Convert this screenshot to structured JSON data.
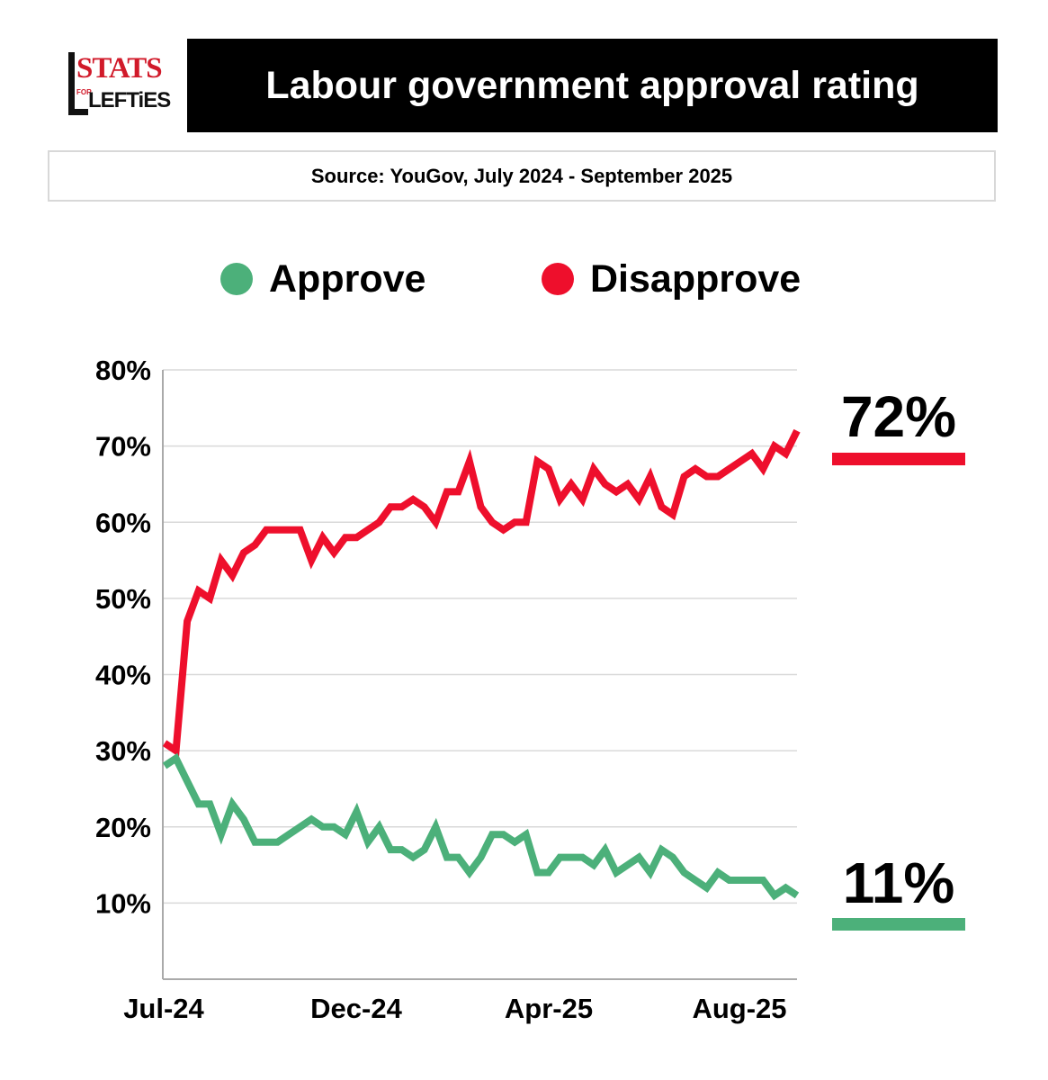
{
  "logo": {
    "line1": "STATS",
    "line2_small": "FOR",
    "line2": "LEFTiES"
  },
  "title": "Labour government approval rating",
  "source": "Source: YouGov, July 2024 - September 2025",
  "colors": {
    "approve": "#4cb07a",
    "disapprove": "#ee0f2c",
    "grid": "#d9d9d9",
    "axis": "#aaaaaa"
  },
  "legend": [
    {
      "label": "Approve",
      "color": "#4cb07a"
    },
    {
      "label": "Disapprove",
      "color": "#ee0f2c"
    }
  ],
  "chart_data": {
    "type": "line",
    "title": "Labour government approval rating",
    "x_tick_labels": [
      "Jul-24",
      "Dec-24",
      "Apr-25",
      "Aug-25"
    ],
    "x_tick_index": [
      0,
      18,
      36,
      54
    ],
    "ylim": [
      0,
      80
    ],
    "y_ticks": [
      10,
      20,
      30,
      40,
      50,
      60,
      70,
      80
    ],
    "y_tick_labels": [
      "10%",
      "20%",
      "30%",
      "40%",
      "50%",
      "60%",
      "70%",
      "80%"
    ],
    "grid": true,
    "series": [
      {
        "name": "Disapprove",
        "end_label": "72%",
        "values": [
          31,
          30,
          47,
          51,
          50,
          55,
          53,
          56,
          57,
          59,
          59,
          59,
          59,
          55,
          58,
          56,
          58,
          58,
          59,
          60,
          62,
          62,
          63,
          62,
          60,
          64,
          64,
          68,
          62,
          60,
          59,
          60,
          60,
          68,
          67,
          63,
          65,
          63,
          67,
          65,
          64,
          65,
          63,
          66,
          62,
          61,
          66,
          67,
          66,
          66,
          67,
          68,
          69,
          67,
          70,
          69,
          72
        ]
      },
      {
        "name": "Approve",
        "end_label": "11%",
        "values": [
          28,
          29,
          26,
          23,
          23,
          19,
          23,
          21,
          18,
          18,
          18,
          19,
          20,
          21,
          20,
          20,
          19,
          22,
          18,
          20,
          17,
          17,
          16,
          17,
          20,
          16,
          16,
          14,
          16,
          19,
          19,
          18,
          19,
          14,
          14,
          16,
          16,
          16,
          15,
          17,
          14,
          15,
          16,
          14,
          17,
          16,
          14,
          13,
          12,
          14,
          13,
          13,
          13,
          13,
          11,
          12,
          11
        ]
      }
    ]
  }
}
